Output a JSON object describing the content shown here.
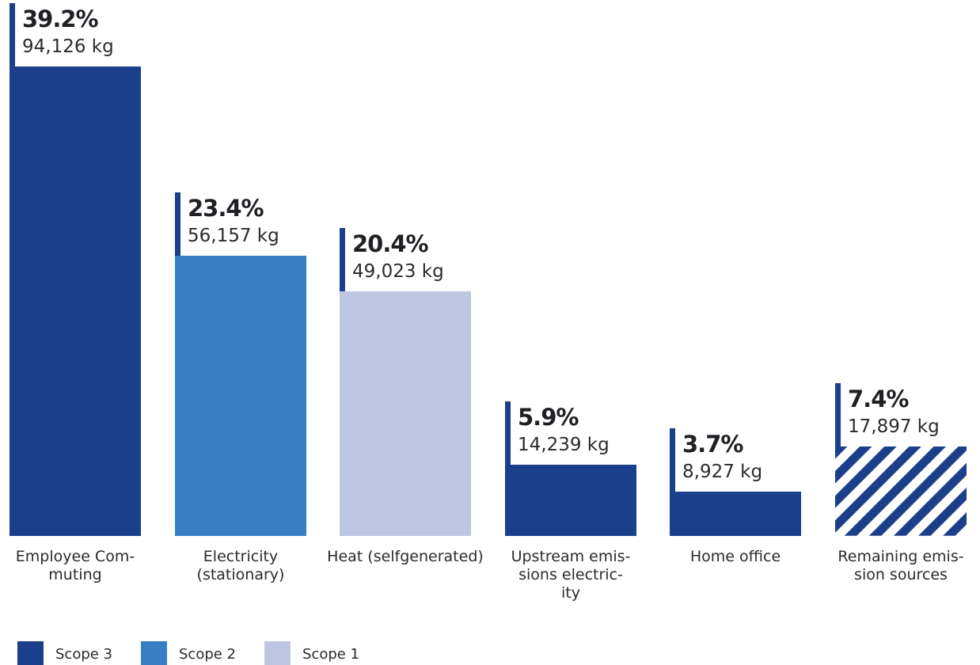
{
  "chart_data": {
    "type": "bar",
    "categories": [
      [
        "Employee Com-",
        "muting"
      ],
      [
        "Electricity",
        "(stationary)"
      ],
      [
        "Heat (selfgenerated)"
      ],
      [
        "Upstream emis-",
        "sions electric-",
        "ity"
      ],
      [
        "Home office"
      ],
      [
        "Remaining emis-",
        "sion sources"
      ]
    ],
    "values": [
      94126,
      56157,
      49023,
      14239,
      8927,
      17897
    ],
    "percent_labels": [
      "39.2%",
      "23.4%",
      "20.4%",
      "5.9%",
      "3.7%",
      "7.4%"
    ],
    "value_labels": [
      "94,126 kg",
      "56,157 kg",
      "49,023 kg",
      "14,239 kg",
      "8,927 kg",
      "17,897 kg"
    ],
    "scopes": [
      "Scope 3",
      "Scope 2",
      "Scope 1",
      "Scope 3",
      "Scope 3",
      "Scope 3 (hatched)"
    ],
    "legend": [
      {
        "label": "Scope 3",
        "color": "#1b3f8a"
      },
      {
        "label": "Scope 2",
        "color": "#387ec3"
      },
      {
        "label": "Scope 1",
        "color": "#bec6e4"
      }
    ],
    "bar_colors": [
      "#1b3f8a",
      "#387ec3",
      "#bec6e4",
      "#1b3f8a",
      "#1b3f8a",
      "hatch"
    ],
    "accent_color": "#1b3f8a",
    "ylim": [
      0,
      98000
    ],
    "legend_position": "bottom-left",
    "grid": false
  }
}
